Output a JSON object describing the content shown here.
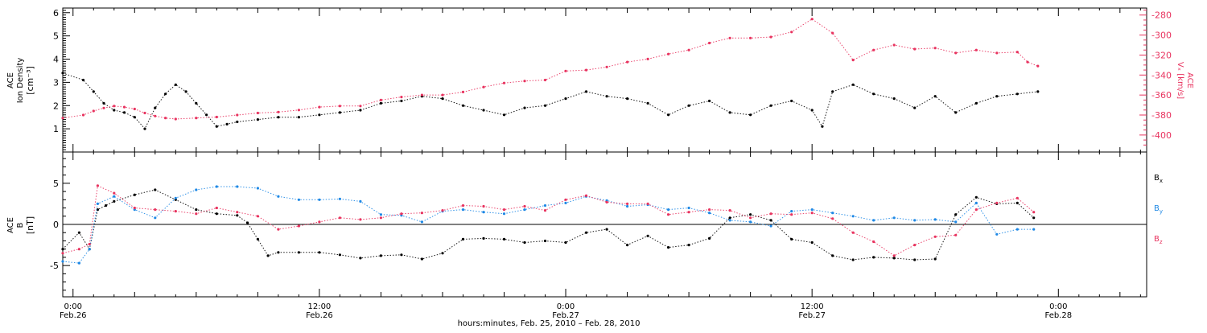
{
  "chart_data": [
    {
      "type": "scatter",
      "title": "",
      "x_range_hours": [
        -0.5,
        52.3
      ],
      "ylim": [
        0,
        6.2
      ],
      "ylabel": [
        "ACE",
        "Ion Density",
        "[cm⁻³]"
      ],
      "yticks": [
        1,
        2,
        3,
        4,
        5,
        6
      ],
      "ylim_right": [
        -417,
        -273
      ],
      "ylabel_right": [
        "ACE",
        "Vₓ [km/s]"
      ],
      "yticks_right": [
        -280,
        -300,
        -320,
        -340,
        -360,
        -380,
        -400
      ],
      "series": [
        {
          "name": "",
          "color": "#000000",
          "axis": "left",
          "x": [
            -0.5,
            0.5,
            1,
            1.5,
            2,
            2.5,
            3,
            3.5,
            4,
            4.5,
            5,
            5.5,
            6,
            6.5,
            7,
            7.5,
            8,
            9,
            10,
            11,
            12,
            13,
            14,
            15,
            16,
            17,
            18,
            19,
            20,
            21,
            22,
            23,
            24,
            25,
            26,
            27,
            28,
            29,
            30,
            31,
            32,
            33,
            34,
            35,
            36,
            36.5,
            37,
            38,
            39,
            40,
            41,
            42,
            43,
            44,
            45,
            46,
            47
          ],
          "y": [
            3.4,
            3.1,
            2.6,
            2.1,
            1.8,
            1.7,
            1.5,
            1.0,
            1.9,
            2.5,
            2.9,
            2.6,
            2.1,
            1.6,
            1.1,
            1.2,
            1.3,
            1.4,
            1.5,
            1.5,
            1.6,
            1.7,
            1.8,
            2.1,
            2.2,
            2.4,
            2.3,
            2.0,
            1.8,
            1.6,
            1.9,
            2.0,
            2.3,
            2.6,
            2.4,
            2.3,
            2.1,
            1.6,
            2.0,
            2.2,
            1.7,
            1.6,
            2.0,
            2.2,
            1.8,
            1.1,
            2.6,
            2.9,
            2.5,
            2.3,
            1.9,
            2.4,
            1.7,
            2.1,
            2.4,
            2.5,
            2.6
          ]
        },
        {
          "name": "",
          "color": "#e8335f",
          "axis": "right",
          "x": [
            -0.5,
            0.5,
            1,
            1.5,
            2,
            2.5,
            3,
            3.5,
            4,
            4.5,
            5,
            6,
            7,
            8,
            9,
            10,
            11,
            12,
            13,
            14,
            15,
            16,
            17,
            18,
            19,
            20,
            21,
            22,
            23,
            24,
            25,
            26,
            27,
            28,
            29,
            30,
            31,
            32,
            33,
            34,
            35,
            36,
            37,
            38,
            39,
            40,
            41,
            42,
            43,
            44,
            45,
            46,
            46.5,
            47
          ],
          "y": [
            -383,
            -380,
            -376,
            -373,
            -371,
            -372,
            -374,
            -378,
            -381,
            -383,
            -384,
            -383,
            -382,
            -380,
            -378,
            -377,
            -375,
            -372,
            -371,
            -371,
            -365,
            -362,
            -360,
            -360,
            -357,
            -352,
            -348,
            -346,
            -345,
            -336,
            -335,
            -332,
            -327,
            -324,
            -319,
            -315,
            -308,
            -303,
            -303,
            -302,
            -297,
            -284,
            -298,
            -325,
            -315,
            -310,
            -314,
            -313,
            -318,
            -315,
            -318,
            -317,
            -327,
            -331
          ]
        }
      ]
    },
    {
      "type": "scatter",
      "title": "",
      "x_range_hours": [
        -0.5,
        52.3
      ],
      "ylim": [
        -8.8,
        8.8
      ],
      "ylabel": [
        "ACE",
        "B",
        "[nT]"
      ],
      "yticks": [
        -5,
        0,
        5
      ],
      "series": [
        {
          "name": "Bx",
          "color": "#000000",
          "x": [
            -0.5,
            0.3,
            0.8,
            1.2,
            1.6,
            2,
            3,
            4,
            5,
            6,
            7,
            8,
            8.5,
            9,
            9.5,
            10,
            11,
            12,
            13,
            14,
            15,
            16,
            17,
            18,
            19,
            20,
            21,
            22,
            23,
            24,
            25,
            26,
            27,
            28,
            29,
            30,
            31,
            32,
            33,
            34,
            35,
            36,
            37,
            38,
            39,
            40,
            41,
            42,
            43,
            44,
            45,
            46,
            46.8
          ],
          "y": [
            -3.0,
            -1.0,
            -3.0,
            1.8,
            2.3,
            2.8,
            3.6,
            4.2,
            3.0,
            1.8,
            1.3,
            1.1,
            0.2,
            -1.8,
            -3.8,
            -3.4,
            -3.4,
            -3.4,
            -3.7,
            -4.1,
            -3.8,
            -3.7,
            -4.2,
            -3.5,
            -1.8,
            -1.7,
            -1.8,
            -2.2,
            -2.0,
            -2.2,
            -1.0,
            -0.6,
            -2.5,
            -1.4,
            -2.8,
            -2.5,
            -1.7,
            0.8,
            1.2,
            0.5,
            -1.8,
            -2.2,
            -3.8,
            -4.3,
            -4.0,
            -4.1,
            -4.3,
            -4.2,
            1.2,
            3.3,
            2.5,
            2.6,
            0.8
          ]
        },
        {
          "name": "By",
          "color": "#1e88e5",
          "x": [
            -0.5,
            0.3,
            0.8,
            1.2,
            2,
            3,
            4,
            5,
            6,
            7,
            8,
            9,
            10,
            11,
            12,
            13,
            14,
            15,
            16,
            17,
            18,
            19,
            20,
            21,
            22,
            23,
            24,
            25,
            26,
            27,
            28,
            29,
            30,
            31,
            32,
            33,
            34,
            35,
            36,
            37,
            38,
            39,
            40,
            41,
            42,
            43,
            44,
            45,
            46,
            46.8
          ],
          "y": [
            -4.5,
            -4.7,
            -3.0,
            2.5,
            3.4,
            1.8,
            0.8,
            3.2,
            4.2,
            4.6,
            4.6,
            4.4,
            3.4,
            3.0,
            3.0,
            3.1,
            2.8,
            1.2,
            1.1,
            0.3,
            1.6,
            1.8,
            1.5,
            1.3,
            1.8,
            2.3,
            2.6,
            3.4,
            2.9,
            2.2,
            2.4,
            1.8,
            2.0,
            1.4,
            0.5,
            0.3,
            -0.2,
            1.6,
            1.8,
            1.4,
            1.0,
            0.5,
            0.8,
            0.5,
            0.6,
            0.3,
            2.6,
            -1.2,
            -0.6,
            -0.6
          ]
        },
        {
          "name": "Bz",
          "color": "#e8335f",
          "x": [
            -0.5,
            0.3,
            0.8,
            1.2,
            2,
            3,
            4,
            5,
            6,
            7,
            8,
            9,
            10,
            11,
            12,
            13,
            14,
            15,
            16,
            17,
            18,
            19,
            20,
            21,
            22,
            23,
            24,
            25,
            26,
            27,
            28,
            29,
            30,
            31,
            32,
            33,
            34,
            35,
            36,
            37,
            38,
            39,
            40,
            41,
            42,
            43,
            44,
            45,
            46,
            46.8
          ],
          "y": [
            -3.5,
            -3.0,
            -2.4,
            4.7,
            3.8,
            2.0,
            1.8,
            1.6,
            1.3,
            2.0,
            1.5,
            1.0,
            -0.6,
            -0.2,
            0.3,
            0.8,
            0.6,
            0.8,
            1.3,
            1.4,
            1.7,
            2.3,
            2.2,
            1.8,
            2.2,
            1.7,
            3.0,
            3.5,
            2.7,
            2.5,
            2.5,
            1.2,
            1.5,
            1.8,
            1.7,
            0.8,
            1.3,
            1.2,
            1.4,
            0.7,
            -1.0,
            -2.1,
            -3.8,
            -2.5,
            -1.5,
            -1.3,
            1.8,
            2.6,
            3.2,
            1.5
          ]
        }
      ]
    }
  ],
  "x_axis": {
    "tick_hours": [
      0,
      12,
      24,
      36,
      48
    ],
    "tick_labels": [
      {
        "time": "0:00",
        "date": "Feb.26"
      },
      {
        "time": "12:00",
        "date": "Feb.26"
      },
      {
        "time": "0:00",
        "date": "Feb.27"
      },
      {
        "time": "12:00",
        "date": "Feb.27"
      },
      {
        "time": "0:00",
        "date": "Feb.28"
      }
    ],
    "title": "hours:minutes, Feb. 25, 2010 – Feb. 28, 2010"
  },
  "legend": [
    {
      "label": "B",
      "sub": "x",
      "color": "#000000"
    },
    {
      "label": "B",
      "sub": "y",
      "color": "#1e88e5"
    },
    {
      "label": "B",
      "sub": "z",
      "color": "#e8335f"
    }
  ],
  "colors": {
    "axis": "#000000",
    "vx": "#e8335f",
    "by": "#1e88e5"
  }
}
